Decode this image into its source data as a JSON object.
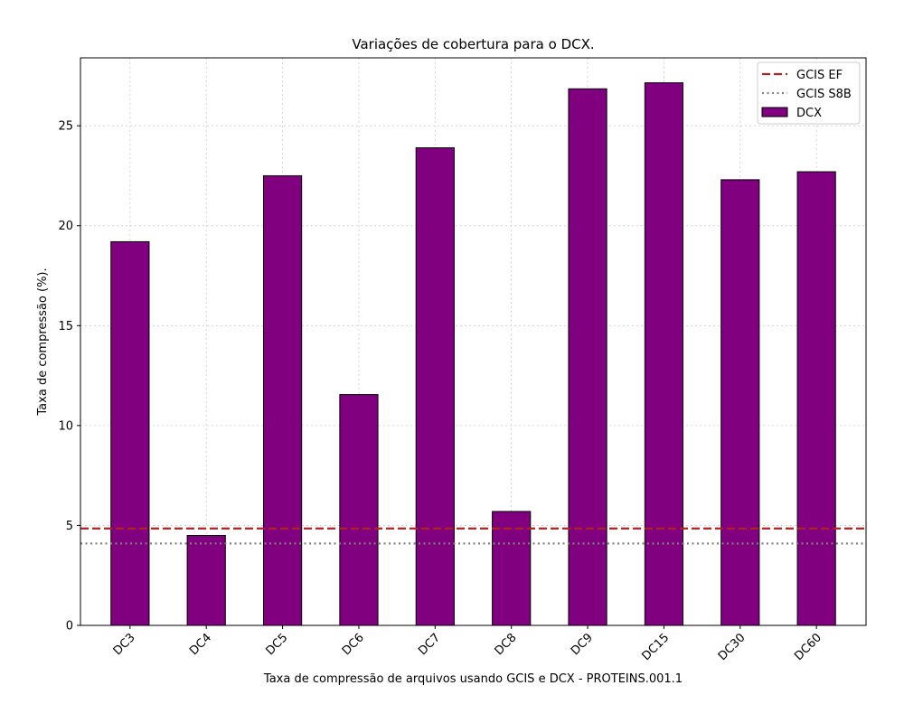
{
  "chart_data": {
    "type": "bar",
    "title": "Variações de cobertura para o DCX.",
    "xlabel": "Taxa de compressão de arquivos usando GCIS e DCX -  PROTEINS.001.1",
    "ylabel": "Taxa de compressão (%).",
    "categories": [
      "DC3",
      "DC4",
      "DC5",
      "DC6",
      "DC7",
      "DC8",
      "DC9",
      "DC15",
      "DC30",
      "DC60"
    ],
    "series": [
      {
        "name": "DCX",
        "values": [
          19.2,
          4.5,
          22.5,
          11.55,
          23.9,
          5.7,
          26.85,
          27.15,
          22.3,
          22.7
        ],
        "color": "#800080"
      }
    ],
    "reference_lines": [
      {
        "name": "GCIS EF",
        "value": 4.85,
        "color": "#b22222",
        "style": "dashed"
      },
      {
        "name": "GCIS S8B",
        "value": 4.1,
        "color": "#808080",
        "style": "dotted"
      }
    ],
    "ylim": [
      0,
      28.4
    ],
    "yticks": [
      0,
      5,
      10,
      15,
      20,
      25
    ],
    "grid": true,
    "legend_position": "top-right",
    "x_tick_rotation": -45
  }
}
